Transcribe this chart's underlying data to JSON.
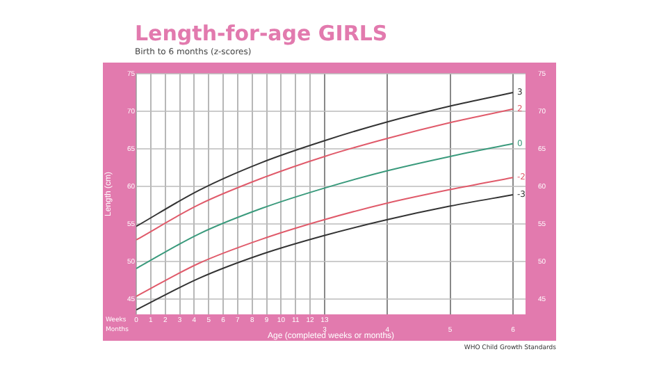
{
  "chart_data": {
    "type": "line",
    "title": "Length-for-age GIRLS",
    "subtitle": "Birth to 6 months (z-scores)",
    "xlabel": "Age (completed weeks or months)",
    "ylabel": "Length (cm)",
    "x": [
      0,
      1,
      2,
      3,
      4,
      5,
      6
    ],
    "series": [
      {
        "name": "3",
        "color": "#333333",
        "values": [
          54.7,
          59.5,
          63.2,
          66.1,
          68.6,
          70.7,
          72.5
        ]
      },
      {
        "name": "2",
        "color": "#e05a6a",
        "values": [
          52.9,
          57.6,
          61.1,
          64.0,
          66.4,
          68.5,
          70.3
        ]
      },
      {
        "name": "0",
        "color": "#3a9a7c",
        "values": [
          49.1,
          53.7,
          57.1,
          59.8,
          62.1,
          64.0,
          65.7
        ]
      },
      {
        "name": "-2",
        "color": "#e05a6a",
        "values": [
          45.4,
          49.8,
          53.0,
          55.6,
          57.8,
          59.6,
          61.2
        ]
      },
      {
        "name": "-3",
        "color": "#333333",
        "values": [
          43.6,
          47.8,
          51.0,
          53.5,
          55.6,
          57.4,
          58.9
        ]
      }
    ],
    "xlim": [
      0,
      6.2
    ],
    "xticks": [
      3,
      4,
      5,
      6
    ],
    "x2lim": [
      0,
      26.87
    ],
    "x2ticks": [
      0,
      1,
      2,
      3,
      4,
      5,
      6,
      7,
      8,
      9,
      10,
      11,
      12,
      13
    ],
    "ylim": [
      43,
      75
    ],
    "yticks": [
      45,
      50,
      55,
      60,
      65,
      70,
      75
    ],
    "y2lim": [
      43,
      75
    ],
    "y2ticks": [
      45,
      50,
      55,
      60,
      65,
      70,
      75
    ],
    "grid": true,
    "legend": false,
    "marker": "none",
    "line_style": "solid",
    "annotations": [
      "Weeks",
      "Months",
      "WHO Child Growth Standards"
    ]
  }
}
